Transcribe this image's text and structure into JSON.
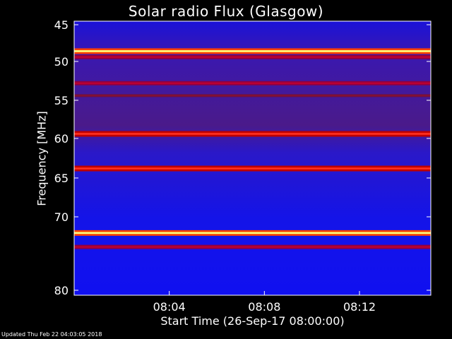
{
  "title": "Solar radio Flux (Glasgow)",
  "footer": "Updated Thu Feb 22 04:03:05 2018",
  "chart_data": {
    "type": "heatmap",
    "title": "Solar radio Flux (Glasgow)",
    "xlabel": "Start Time (26-Sep-17 08:00:00)",
    "ylabel": "Frequency [MHz]",
    "xlim": [
      "08:00",
      "08:15"
    ],
    "ylim": [
      80,
      45
    ],
    "x_ticks": [
      "08:04",
      "08:08",
      "08:12"
    ],
    "y_ticks": [
      "45",
      "50",
      "55",
      "60",
      "65",
      "70",
      "80"
    ],
    "colormap": "blue-red-yellow",
    "background_colors": [
      "#1010e0",
      "#3018c8",
      "#4a1a8a"
    ],
    "emission_bands_mhz": [
      {
        "freq": 48.6,
        "intensity": "very high"
      },
      {
        "freq": 49.4,
        "intensity": "medium"
      },
      {
        "freq": 52.8,
        "intensity": "medium"
      },
      {
        "freq": 54.4,
        "intensity": "low"
      },
      {
        "freq": 59.4,
        "intensity": "high"
      },
      {
        "freq": 63.8,
        "intensity": "high"
      },
      {
        "freq": 72.2,
        "intensity": "very high"
      },
      {
        "freq": 74.1,
        "intensity": "medium"
      }
    ],
    "grid": false
  }
}
